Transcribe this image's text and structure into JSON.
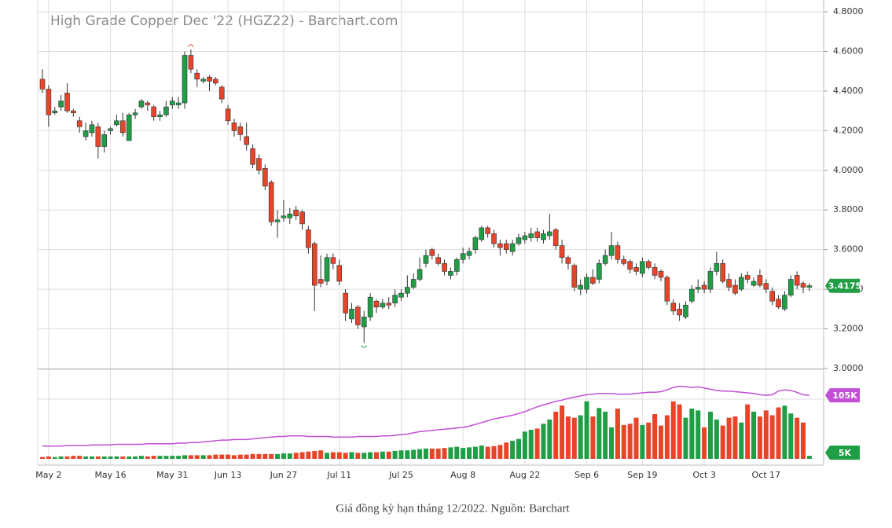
{
  "chart_data": {
    "type": "candlestick",
    "title": "High Grade Copper Dec '22 (HGZ22) - Barchart.com",
    "caption": "Giá đồng kỳ hạn tháng 12/2022. Nguồn: Barchart",
    "categories": [
      null,
      "May 2",
      null,
      null,
      null,
      null,
      null,
      null,
      null,
      null,
      null,
      "May 16",
      null,
      null,
      null,
      null,
      null,
      null,
      null,
      null,
      null,
      "May 31",
      null,
      null,
      null,
      null,
      null,
      null,
      null,
      null,
      "Jun 13",
      null,
      null,
      null,
      null,
      null,
      null,
      null,
      null,
      "Jun 27",
      null,
      null,
      null,
      null,
      null,
      null,
      null,
      null,
      "Jul 11",
      null,
      null,
      null,
      null,
      null,
      null,
      null,
      null,
      null,
      "Jul 25",
      null,
      null,
      null,
      null,
      null,
      null,
      null,
      null,
      null,
      "Aug 8",
      null,
      null,
      null,
      null,
      null,
      null,
      null,
      null,
      null,
      "Aug 22",
      null,
      null,
      null,
      null,
      null,
      null,
      null,
      null,
      null,
      "Sep 6",
      null,
      null,
      null,
      null,
      null,
      null,
      null,
      null,
      "Sep 19",
      null,
      null,
      null,
      null,
      null,
      null,
      null,
      null,
      null,
      "Oct 3",
      null,
      null,
      null,
      null,
      null,
      null,
      null,
      null,
      null,
      "Oct 17",
      null,
      null,
      null,
      null,
      null,
      null,
      null
    ],
    "open": [
      4.46,
      4.41,
      4.29,
      4.32,
      4.39,
      4.3,
      4.25,
      4.17,
      4.19,
      4.22,
      4.12,
      4.2,
      4.23,
      4.25,
      4.15,
      4.28,
      4.32,
      4.34,
      4.32,
      4.27,
      4.28,
      4.33,
      4.33,
      4.34,
      4.58,
      4.49,
      4.45,
      4.47,
      4.46,
      4.42,
      4.31,
      4.24,
      4.22,
      4.17,
      4.11,
      4.06,
      4.01,
      3.94,
      3.74,
      3.76,
      3.76,
      3.8,
      3.79,
      3.7,
      3.63,
      3.45,
      3.44,
      3.56,
      3.52,
      3.38,
      3.25,
      3.31,
      3.21,
      3.26,
      3.34,
      3.31,
      3.33,
      3.33,
      3.36,
      3.38,
      3.41,
      3.45,
      3.53,
      3.6,
      3.56,
      3.53,
      3.47,
      3.49,
      3.55,
      3.57,
      3.6,
      3.65,
      3.71,
      3.68,
      3.63,
      3.63,
      3.59,
      3.63,
      3.65,
      3.66,
      3.69,
      3.65,
      3.67,
      3.7,
      3.62,
      3.56,
      3.52,
      3.4,
      3.4,
      3.46,
      3.45,
      3.53,
      3.57,
      3.62,
      3.55,
      3.54,
      3.51,
      3.48,
      3.54,
      3.51,
      3.49,
      3.46,
      3.33,
      3.3,
      3.26,
      3.34,
      3.4,
      3.42,
      3.4,
      3.49,
      3.53,
      3.45,
      3.42,
      3.4,
      3.47,
      3.42,
      3.47,
      3.43,
      3.39,
      3.35,
      3.3,
      3.37,
      3.47,
      3.43,
      3.41
    ],
    "high": [
      4.51,
      4.43,
      4.32,
      4.38,
      4.44,
      4.31,
      4.27,
      4.24,
      4.25,
      4.24,
      4.2,
      4.22,
      4.28,
      4.29,
      4.29,
      4.31,
      4.36,
      4.35,
      4.33,
      4.3,
      4.35,
      4.37,
      4.37,
      4.6,
      4.61,
      4.51,
      4.47,
      4.48,
      4.47,
      4.43,
      4.33,
      4.26,
      4.24,
      4.24,
      4.13,
      4.08,
      4.03,
      3.95,
      3.8,
      3.85,
      3.81,
      3.82,
      3.8,
      3.72,
      3.64,
      3.57,
      3.58,
      3.58,
      3.55,
      3.4,
      3.33,
      3.32,
      3.29,
      3.38,
      3.35,
      3.35,
      3.36,
      3.4,
      3.4,
      3.47,
      3.48,
      3.56,
      3.6,
      3.61,
      3.58,
      3.55,
      3.51,
      3.56,
      3.61,
      3.61,
      3.67,
      3.72,
      3.72,
      3.7,
      3.65,
      3.65,
      3.65,
      3.68,
      3.69,
      3.71,
      3.71,
      3.7,
      3.78,
      3.71,
      3.65,
      3.57,
      3.53,
      3.45,
      3.48,
      3.5,
      3.55,
      3.6,
      3.69,
      3.64,
      3.57,
      3.55,
      3.53,
      3.56,
      3.55,
      3.53,
      3.5,
      3.47,
      3.35,
      3.33,
      3.34,
      3.42,
      3.45,
      3.44,
      3.51,
      3.59,
      3.55,
      3.48,
      3.45,
      3.48,
      3.49,
      3.46,
      3.5,
      3.45,
      3.41,
      3.37,
      3.39,
      3.47,
      3.49,
      3.44,
      3.43
    ],
    "low": [
      4.39,
      4.22,
      4.28,
      4.3,
      4.29,
      4.27,
      4.19,
      4.15,
      4.17,
      4.06,
      4.09,
      4.18,
      4.22,
      4.17,
      4.15,
      4.26,
      4.31,
      4.3,
      4.25,
      4.25,
      4.27,
      4.31,
      4.31,
      4.31,
      4.49,
      4.42,
      4.44,
      4.4,
      4.43,
      4.34,
      4.23,
      4.17,
      4.15,
      4.1,
      4.01,
      3.98,
      3.9,
      3.72,
      3.66,
      3.74,
      3.73,
      3.75,
      3.7,
      3.58,
      3.29,
      3.41,
      3.42,
      3.5,
      3.42,
      3.24,
      3.23,
      3.2,
      3.13,
      3.24,
      3.28,
      3.3,
      3.3,
      3.31,
      3.34,
      3.36,
      3.4,
      3.44,
      3.51,
      3.55,
      3.52,
      3.47,
      3.45,
      3.47,
      3.53,
      3.55,
      3.58,
      3.64,
      3.66,
      3.61,
      3.57,
      3.58,
      3.57,
      3.62,
      3.63,
      3.64,
      3.64,
      3.63,
      3.65,
      3.6,
      3.53,
      3.5,
      3.39,
      3.37,
      3.38,
      3.42,
      3.43,
      3.52,
      3.55,
      3.53,
      3.52,
      3.48,
      3.47,
      3.46,
      3.5,
      3.45,
      3.44,
      3.32,
      3.27,
      3.24,
      3.25,
      3.33,
      3.38,
      3.38,
      3.38,
      3.47,
      3.43,
      3.39,
      3.37,
      3.39,
      3.43,
      3.41,
      3.41,
      3.38,
      3.32,
      3.3,
      3.29,
      3.36,
      3.4,
      3.38,
      3.39
    ],
    "close": [
      4.41,
      4.28,
      4.3,
      4.35,
      4.3,
      4.29,
      4.22,
      4.2,
      4.23,
      4.12,
      4.18,
      4.21,
      4.25,
      4.19,
      4.28,
      4.29,
      4.35,
      4.33,
      4.27,
      4.28,
      4.32,
      4.35,
      4.34,
      4.58,
      4.51,
      4.46,
      4.46,
      4.45,
      4.44,
      4.36,
      4.25,
      4.2,
      4.18,
      4.13,
      4.03,
      4.0,
      3.92,
      3.74,
      3.75,
      3.77,
      3.78,
      3.77,
      3.73,
      3.61,
      3.42,
      3.43,
      3.56,
      3.53,
      3.44,
      3.28,
      3.3,
      3.22,
      3.26,
      3.36,
      3.31,
      3.33,
      3.32,
      3.37,
      3.38,
      3.41,
      3.45,
      3.5,
      3.57,
      3.57,
      3.53,
      3.49,
      3.49,
      3.55,
      3.58,
      3.59,
      3.66,
      3.71,
      3.68,
      3.63,
      3.61,
      3.6,
      3.63,
      3.66,
      3.67,
      3.68,
      3.66,
      3.68,
      3.69,
      3.62,
      3.56,
      3.53,
      3.41,
      3.42,
      3.46,
      3.43,
      3.53,
      3.57,
      3.62,
      3.55,
      3.53,
      3.5,
      3.49,
      3.54,
      3.51,
      3.47,
      3.46,
      3.34,
      3.29,
      3.27,
      3.32,
      3.4,
      3.41,
      3.4,
      3.49,
      3.53,
      3.44,
      3.41,
      3.38,
      3.46,
      3.45,
      3.44,
      3.42,
      3.4,
      3.34,
      3.31,
      3.37,
      3.45,
      3.42,
      3.41,
      3.4175
    ],
    "up_color": "#1f9e45",
    "down_color": "#e8442a",
    "ylim": [
      3.0,
      4.8
    ],
    "yticks": [
      {
        "value": 3.0,
        "label": "3.0000"
      },
      {
        "value": 3.2,
        "label": "3.2000"
      },
      {
        "value": 3.4,
        "label": "3.4000"
      },
      {
        "value": 3.6,
        "label": "3.6000"
      },
      {
        "value": 3.8,
        "label": "3.8000"
      },
      {
        "value": 4.0,
        "label": "4.0000"
      },
      {
        "value": 4.2,
        "label": "4.2000"
      },
      {
        "value": 4.4,
        "label": "4.4000"
      },
      {
        "value": 4.6,
        "label": "4.6000"
      },
      {
        "value": 4.8,
        "label": "4.8000"
      }
    ],
    "grid": true,
    "volume": {
      "values": [
        3,
        4,
        3,
        4,
        4,
        5,
        5,
        4,
        4,
        4,
        4,
        4,
        4,
        4,
        4,
        4,
        5,
        4,
        5,
        5,
        5,
        5,
        5,
        6,
        6,
        6,
        6,
        6,
        7,
        7,
        7,
        6,
        7,
        7,
        8,
        8,
        8,
        8,
        8,
        9,
        9,
        10,
        11,
        12,
        13,
        14,
        10,
        11,
        11,
        10,
        11,
        10,
        10,
        11,
        11,
        12,
        12,
        13,
        14,
        14,
        15,
        16,
        17,
        17,
        17,
        18,
        19,
        20,
        18,
        19,
        20,
        22,
        20,
        21,
        23,
        27,
        30,
        33,
        45,
        48,
        50,
        58,
        65,
        78,
        88,
        70,
        68,
        72,
        95,
        70,
        84,
        78,
        52,
        83,
        56,
        58,
        68,
        56,
        60,
        74,
        55,
        72,
        95,
        90,
        68,
        83,
        80,
        52,
        78,
        65,
        55,
        68,
        70,
        60,
        90,
        78,
        70,
        80,
        72,
        85,
        88,
        75,
        68,
        60,
        5
      ],
      "last_label": "5K",
      "average": [
        21,
        21,
        21,
        21,
        22,
        22,
        22,
        22,
        23,
        23,
        23,
        23,
        24,
        24,
        24,
        24,
        24,
        25,
        25,
        25,
        25,
        25,
        26,
        26,
        27,
        27,
        28,
        29,
        30,
        31,
        31,
        32,
        32,
        32,
        33,
        34,
        35,
        36,
        37,
        37,
        38,
        38,
        38,
        37,
        37,
        37,
        37,
        36,
        36,
        36,
        36,
        37,
        37,
        37,
        37,
        38,
        38,
        39,
        40,
        41,
        43,
        45,
        46,
        47,
        48,
        49,
        50,
        51,
        52,
        54,
        57,
        60,
        63,
        66,
        68,
        70,
        72,
        75,
        78,
        82,
        86,
        89,
        92,
        95,
        97,
        100,
        102,
        104,
        106,
        107,
        108,
        108,
        108,
        107,
        107,
        107,
        108,
        109,
        110,
        110,
        111,
        114,
        118,
        120,
        119,
        118,
        119,
        117,
        115,
        113,
        112,
        112,
        111,
        110,
        109,
        108,
        106,
        105,
        106,
        112,
        114,
        113,
        110,
        106,
        105
      ],
      "average_last_label": "105K",
      "average_color": "#c24fd6",
      "ylim": [
        0,
        148
      ]
    }
  }
}
